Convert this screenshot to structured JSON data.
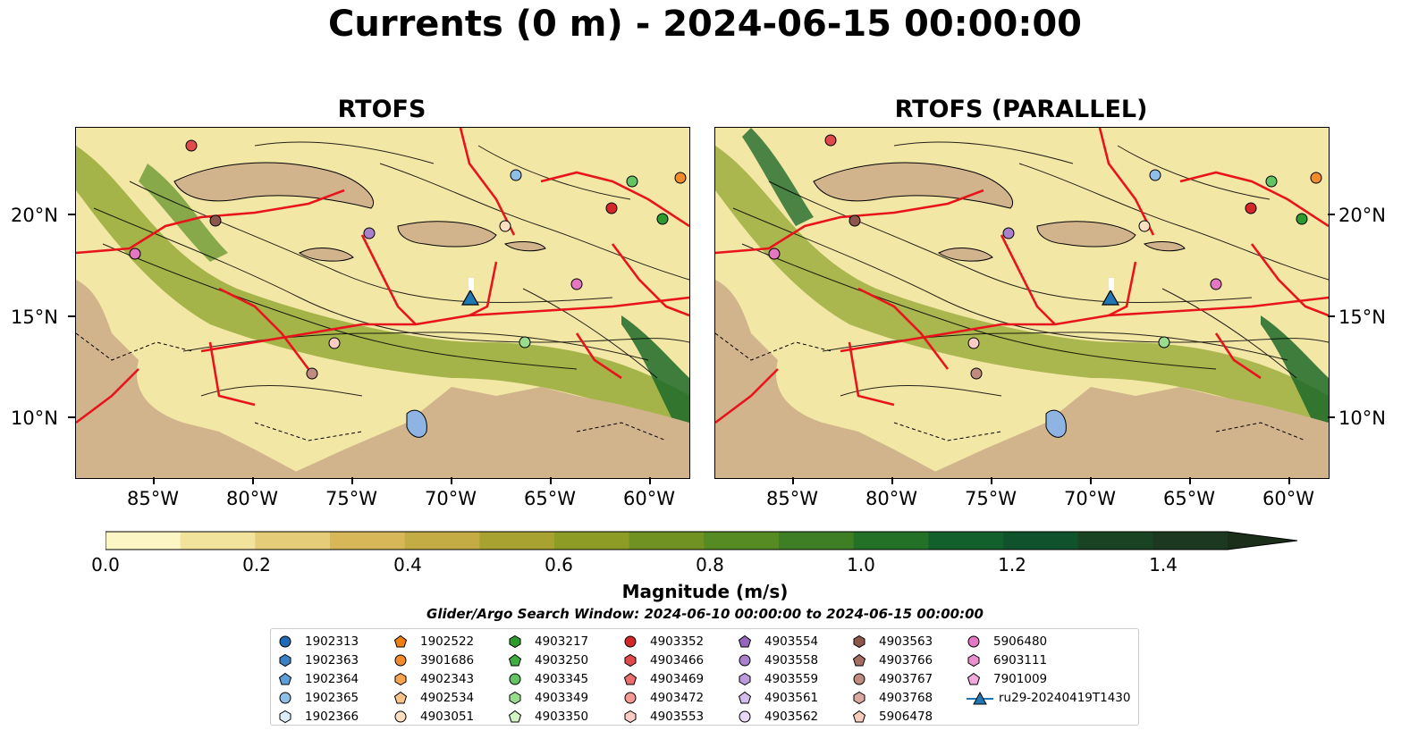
{
  "title": "Currents (0 m) - 2024-06-15 00:00:00",
  "panels": [
    {
      "title": "RTOFS"
    },
    {
      "title": "RTOFS (PARALLEL)"
    }
  ],
  "map": {
    "lat_labels": [
      "20°N",
      "15°N",
      "10°N"
    ],
    "lon_labels": [
      "85°W",
      "80°W",
      "75°W",
      "70°W",
      "65°W",
      "60°W"
    ]
  },
  "colorbar": {
    "label": "Magnitude (m/s)",
    "ticks": [
      "0.0",
      "0.2",
      "0.4",
      "0.6",
      "0.8",
      "1.0",
      "1.2",
      "1.4"
    ],
    "colors": [
      "#fcf6c4",
      "#f1e29c",
      "#e4cc78",
      "#d7b758",
      "#c4ac45",
      "#a8a331",
      "#8c9c24",
      "#6f9222",
      "#568a22",
      "#3e7e24",
      "#237027",
      "#12612c",
      "#10522b",
      "#1a4324",
      "#1c3820",
      "#1a2e1a"
    ],
    "extend": "max"
  },
  "search_window": "Glider/Argo Search Window: 2024-06-10 00:00:00 to 2024-06-15 00:00:00",
  "legend": {
    "columns": [
      [
        {
          "label": "1902313",
          "shape": "circle",
          "color": "#1f6bb5"
        },
        {
          "label": "1902363",
          "shape": "hexagon",
          "color": "#3a80c2"
        },
        {
          "label": "1902364",
          "shape": "pentagon",
          "color": "#5b9ed8"
        },
        {
          "label": "1902365",
          "shape": "circle",
          "color": "#8fbfe8"
        },
        {
          "label": "1902366",
          "shape": "hexagon",
          "color": "#ddeefa"
        }
      ],
      [
        {
          "label": "1902522",
          "shape": "pentagon",
          "color": "#f07f0e"
        },
        {
          "label": "3901686",
          "shape": "circle",
          "color": "#f48b2a"
        },
        {
          "label": "4902343",
          "shape": "hexagon",
          "color": "#f8a552"
        },
        {
          "label": "4902534",
          "shape": "pentagon",
          "color": "#fbc38a"
        },
        {
          "label": "4903051",
          "shape": "circle",
          "color": "#fde0c1"
        }
      ],
      [
        {
          "label": "4903217",
          "shape": "hexagon",
          "color": "#2c9a2c"
        },
        {
          "label": "4903250",
          "shape": "pentagon",
          "color": "#3fad3f"
        },
        {
          "label": "4903345",
          "shape": "circle",
          "color": "#64c464"
        },
        {
          "label": "4903349",
          "shape": "hexagon",
          "color": "#9adc8e"
        },
        {
          "label": "4903350",
          "shape": "pentagon",
          "color": "#d2f2c4"
        }
      ],
      [
        {
          "label": "4903352",
          "shape": "circle",
          "color": "#d62728"
        },
        {
          "label": "4903466",
          "shape": "hexagon",
          "color": "#e04a4a"
        },
        {
          "label": "4903469",
          "shape": "pentagon",
          "color": "#ea6e6e"
        },
        {
          "label": "4903472",
          "shape": "circle",
          "color": "#f39a96"
        },
        {
          "label": "4903553",
          "shape": "hexagon",
          "color": "#fbcbc6"
        }
      ],
      [
        {
          "label": "4903554",
          "shape": "pentagon",
          "color": "#9467bd"
        },
        {
          "label": "4903558",
          "shape": "circle",
          "color": "#a880cc"
        },
        {
          "label": "4903559",
          "shape": "hexagon",
          "color": "#bb9bdb"
        },
        {
          "label": "4903561",
          "shape": "pentagon",
          "color": "#d3bdea"
        },
        {
          "label": "4903562",
          "shape": "circle",
          "color": "#ead9f6"
        }
      ],
      [
        {
          "label": "4903563",
          "shape": "hexagon",
          "color": "#8c564b"
        },
        {
          "label": "4903766",
          "shape": "pentagon",
          "color": "#a56c60"
        },
        {
          "label": "4903767",
          "shape": "circle",
          "color": "#c08c80"
        },
        {
          "label": "4903768",
          "shape": "hexagon",
          "color": "#dba9a0"
        },
        {
          "label": "5906478",
          "shape": "pentagon",
          "color": "#f5cbbd"
        }
      ],
      [
        {
          "label": "5906480",
          "shape": "circle",
          "color": "#e377c2"
        },
        {
          "label": "6903111",
          "shape": "hexagon",
          "color": "#ea8fce"
        },
        {
          "label": "7901009",
          "shape": "pentagon",
          "color": "#f1a9db"
        },
        {
          "label": "ru29-20240419T1430",
          "shape": "triangle-line",
          "color": "#1f77b4"
        }
      ]
    ]
  }
}
